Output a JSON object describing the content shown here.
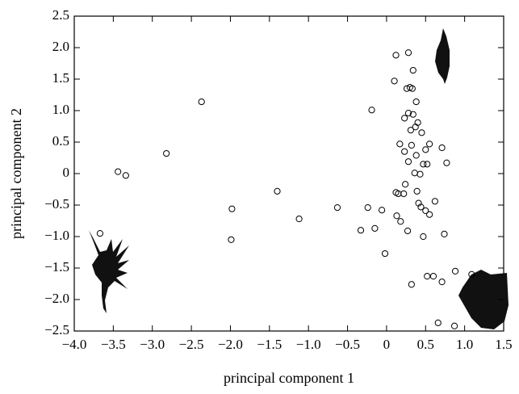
{
  "chart_data": {
    "type": "scatter",
    "x_label": "principal component 1",
    "y_label": "principal component 2",
    "x": [
      -3.67,
      -3.44,
      -3.34,
      -2.82,
      -2.37,
      -1.98,
      -1.99,
      -1.4,
      -1.12,
      -0.63,
      -0.19,
      -0.33,
      -0.24,
      -0.15,
      -0.06,
      -0.02,
      0.13,
      0.18,
      0.32,
      0.27,
      0.12,
      0.28,
      0.1,
      0.34,
      0.26,
      0.3,
      0.33,
      0.38,
      0.23,
      0.28,
      0.4,
      0.37,
      0.31,
      0.34,
      0.17,
      0.23,
      0.32,
      0.38,
      0.45,
      0.5,
      0.55,
      0.71,
      0.77,
      0.28,
      0.36,
      0.43,
      0.47,
      0.52,
      0.39,
      0.24,
      0.22,
      0.15,
      0.12,
      0.44,
      0.5,
      0.55,
      0.62,
      0.41,
      0.47,
      0.52,
      0.6,
      0.71,
      0.74,
      0.88,
      1.09,
      0.66,
      0.87
    ],
    "values": [
      -0.95,
      0.03,
      -0.03,
      0.32,
      1.14,
      -0.56,
      -1.05,
      -0.28,
      -0.72,
      -0.54,
      1.01,
      -0.9,
      -0.54,
      -0.87,
      -0.58,
      -1.27,
      -0.67,
      -0.76,
      -1.76,
      -0.91,
      1.88,
      1.92,
      1.47,
      1.64,
      1.35,
      1.37,
      1.35,
      1.14,
      0.88,
      0.96,
      0.81,
      0.74,
      0.69,
      0.94,
      0.47,
      0.35,
      0.45,
      0.29,
      0.65,
      0.38,
      0.47,
      0.41,
      0.17,
      0.19,
      0.01,
      -0.01,
      0.15,
      0.15,
      -0.28,
      -0.17,
      -0.32,
      -0.32,
      -0.3,
      -0.53,
      -0.59,
      -0.65,
      -0.44,
      -0.47,
      -1.0,
      -1.63,
      -1.63,
      -1.72,
      -0.96,
      -1.55,
      -1.6,
      -2.37,
      -2.42
    ],
    "xlim": [
      -4,
      1.5
    ],
    "xticks": [
      {
        "value": -4,
        "label": "−4.0"
      },
      {
        "value": -3.5,
        "label": "−3.5"
      },
      {
        "value": -3,
        "label": "−3.0"
      },
      {
        "value": -2.5,
        "label": "−2.5"
      },
      {
        "value": -2,
        "label": "−2.0"
      },
      {
        "value": -1.5,
        "label": "−1.5"
      },
      {
        "value": -1,
        "label": "−1.0"
      },
      {
        "value": -0.5,
        "label": "−0.5"
      },
      0,
      0.5,
      {
        "value": 1,
        "label": "1.0"
      },
      1.5
    ],
    "ylim": [
      -2.5,
      2.5
    ],
    "yticks": [
      {
        "value": -2.5,
        "label": "−2.5"
      },
      {
        "value": -2,
        "label": "−2.0"
      },
      {
        "value": -1.5,
        "label": "−1.5"
      },
      {
        "value": -1,
        "label": "−1.0"
      },
      {
        "value": -0.5,
        "label": "−0.5"
      },
      0,
      0.5,
      {
        "value": 1,
        "label": "1.0"
      },
      1.5,
      {
        "value": 2,
        "label": "2.0"
      },
      2.5
    ],
    "marker_color": "#000000"
  }
}
